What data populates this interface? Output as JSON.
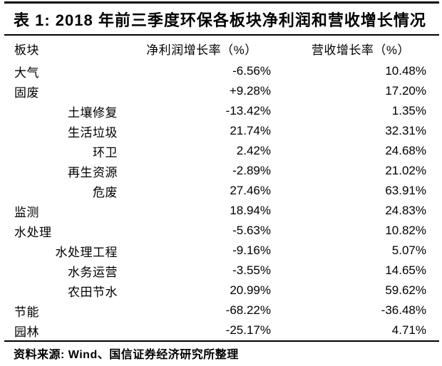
{
  "page": {
    "title": "表 1: 2018 年前三季度环保各板块净利润和营收增长情况",
    "source_note": "资料来源: Wind、国信证券经济研究所整理"
  },
  "table": {
    "columns": {
      "sector": "板块",
      "net_profit": "净利润增长率（%）",
      "revenue": "营收增长率（%）"
    },
    "rows": [
      {
        "label": "大气",
        "sub": false,
        "net_profit": "-6.56%",
        "revenue": "10.48%"
      },
      {
        "label": "固废",
        "sub": false,
        "net_profit": "+9.28%",
        "revenue": "17.20%"
      },
      {
        "label": "土壤修复",
        "sub": true,
        "net_profit": "-13.42%",
        "revenue": "1.35%"
      },
      {
        "label": "生活垃圾",
        "sub": true,
        "net_profit": "21.74%",
        "revenue": "32.31%"
      },
      {
        "label": "环卫",
        "sub": true,
        "net_profit": "2.42%",
        "revenue": "24.68%"
      },
      {
        "label": "再生资源",
        "sub": true,
        "net_profit": "-2.89%",
        "revenue": "21.02%"
      },
      {
        "label": "危废",
        "sub": true,
        "net_profit": "27.46%",
        "revenue": "63.91%"
      },
      {
        "label": "监测",
        "sub": false,
        "net_profit": "18.94%",
        "revenue": "24.83%"
      },
      {
        "label": "水处理",
        "sub": false,
        "net_profit": "-5.63%",
        "revenue": "10.82%"
      },
      {
        "label": "水处理工程",
        "sub": true,
        "net_profit": "-9.16%",
        "revenue": "5.07%"
      },
      {
        "label": "水务运营",
        "sub": true,
        "net_profit": "-3.55%",
        "revenue": "14.65%"
      },
      {
        "label": "农田节水",
        "sub": true,
        "net_profit": "20.99%",
        "revenue": "59.62%"
      },
      {
        "label": "节能",
        "sub": false,
        "net_profit": "-68.22%",
        "revenue": "-36.48%"
      },
      {
        "label": "园林",
        "sub": false,
        "net_profit": "-25.17%",
        "revenue": "4.71%"
      }
    ]
  },
  "chart_data": {
    "type": "table",
    "title": "表 1: 2018 年前三季度环保各板块净利润和营收增长情况",
    "columns": [
      "板块",
      "净利润增长率（%）",
      "营收增长率（%）"
    ],
    "categories": [
      "大气",
      "固废",
      "土壤修复",
      "生活垃圾",
      "环卫",
      "再生资源",
      "危废",
      "监测",
      "水处理",
      "水处理工程",
      "水务运营",
      "农田节水",
      "节能",
      "园林"
    ],
    "series": [
      {
        "name": "净利润增长率（%）",
        "values": [
          -6.56,
          9.28,
          -13.42,
          21.74,
          2.42,
          -2.89,
          27.46,
          18.94,
          -5.63,
          -9.16,
          -3.55,
          20.99,
          -68.22,
          -25.17
        ]
      },
      {
        "name": "营收增长率（%）",
        "values": [
          10.48,
          17.2,
          1.35,
          32.31,
          24.68,
          21.02,
          63.91,
          24.83,
          10.82,
          5.07,
          14.65,
          59.62,
          -36.48,
          4.71
        ]
      }
    ]
  }
}
